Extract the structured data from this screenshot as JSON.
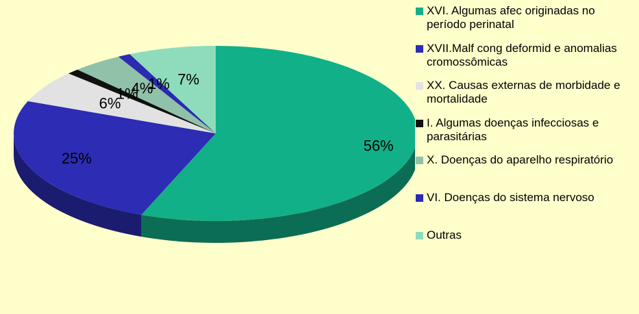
{
  "chart_data": {
    "type": "pie3d",
    "categories": [
      "XVI. Algumas afec originadas no período perinatal",
      "XVII.Malf cong deformid e anomalias cromossômicas",
      "XX.  Causas externas de morbidade e mortalidade",
      "I.   Algumas doenças infecciosas e parasitárias",
      "X.   Doenças do aparelho respiratório",
      "VI.  Doenças do sistema nervoso",
      "Outras"
    ],
    "values": [
      56,
      25,
      6,
      1,
      4,
      1,
      7
    ],
    "value_labels": [
      "56%",
      "25%",
      "6%",
      "1%",
      "4%",
      "1%",
      "7%"
    ],
    "colors": [
      "#12b088",
      "#2c2cb4",
      "#e2e2e2",
      "#111111",
      "#8fc2a8",
      "#2a2ab2",
      "#8edcbc"
    ],
    "legend": "right"
  }
}
